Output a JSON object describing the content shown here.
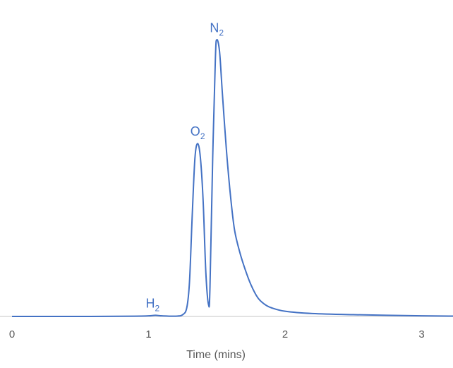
{
  "chart_data": {
    "type": "line",
    "title": "",
    "xlabel": "Time (mins)",
    "ylabel": "",
    "xlim": [
      0,
      3.25
    ],
    "ylim": [
      0,
      100
    ],
    "x_ticks": [
      "0",
      "1",
      "2",
      "3"
    ],
    "grid": false,
    "legend": "none",
    "series_color": "#4472c4",
    "axis_color": "#d9d9d9",
    "series": [
      {
        "x": [
          0,
          0.5,
          0.9,
          1.0,
          1.05,
          1.1,
          1.2,
          1.25,
          1.28,
          1.3,
          1.32,
          1.34,
          1.36,
          1.38,
          1.4,
          1.42,
          1.44,
          1.45,
          1.47,
          1.49,
          1.5,
          1.52,
          1.54,
          1.57,
          1.6,
          1.63,
          1.67,
          1.71,
          1.75,
          1.8,
          1.85,
          1.9,
          2.0,
          2.2,
          2.5,
          3.0,
          3.25
        ],
        "y": [
          0,
          0,
          0.1,
          0.2,
          0.4,
          0.2,
          0.1,
          0.6,
          3,
          12,
          35,
          55,
          60,
          55,
          40,
          15,
          4,
          10,
          55,
          90,
          96,
          92,
          78,
          58,
          42,
          30,
          22,
          16,
          11,
          6.5,
          4.2,
          3.0,
          1.8,
          1.0,
          0.6,
          0.2,
          0.1
        ]
      }
    ],
    "annotations": [
      {
        "base": "H",
        "sub": "2",
        "x": 1.03,
        "y": 0.4
      },
      {
        "base": "O",
        "sub": "2",
        "x": 1.36,
        "y": 60
      },
      {
        "base": "N",
        "sub": "2",
        "x": 1.5,
        "y": 96
      }
    ]
  }
}
